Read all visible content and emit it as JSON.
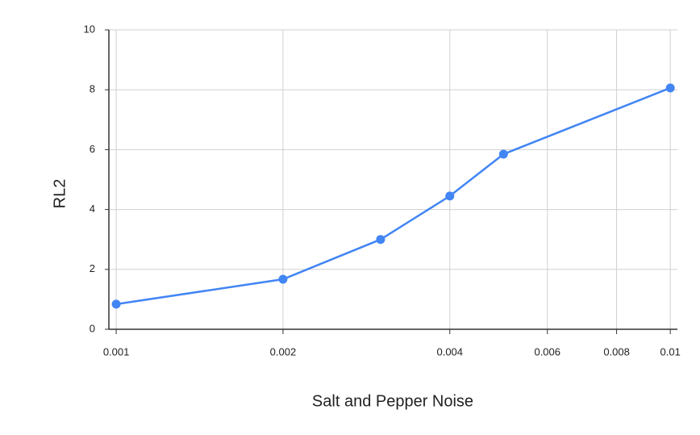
{
  "chart_data": {
    "type": "line",
    "x_label": "Salt and Pepper Noise",
    "y_label": "RL2",
    "x": [
      0.001,
      0.002,
      0.003,
      0.004,
      0.005,
      0.01
    ],
    "series": [
      {
        "name": "RL2",
        "color": "#4285f4",
        "values": [
          0.84,
          1.67,
          3.0,
          4.45,
          5.85,
          8.06
        ]
      }
    ],
    "xscale": "log",
    "xlim": [
      0.00097,
      0.0103
    ],
    "xticks": [
      0.001,
      0.002,
      0.004,
      0.006,
      0.008,
      0.01
    ],
    "ylim": [
      0,
      10
    ],
    "yticks": [
      0,
      2,
      4,
      6,
      8,
      10
    ],
    "grid": true
  }
}
